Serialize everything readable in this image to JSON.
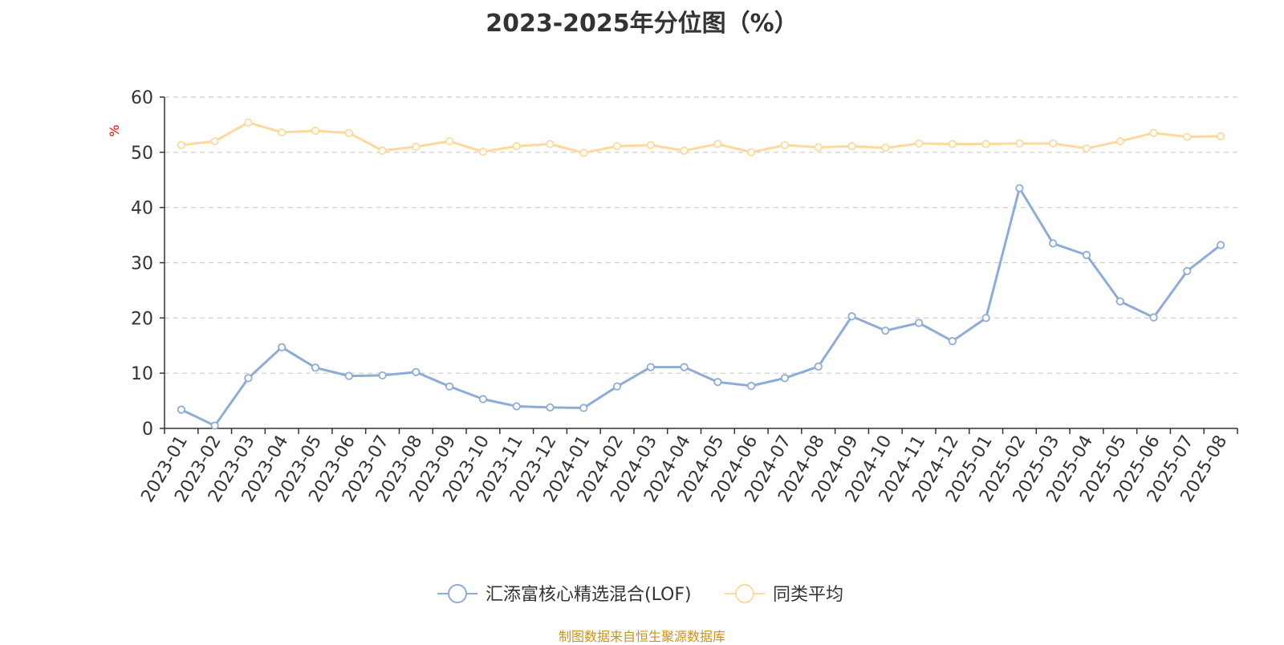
{
  "page": {
    "title": "2023-2025年分位图（%）",
    "source": "制图数据来自恒生聚源数据库"
  },
  "chart_data": {
    "type": "line",
    "title": "2023-2025年分位图（%）",
    "xlabel": "",
    "ylabel": "%",
    "ylim": [
      0,
      60
    ],
    "yticks": [
      0,
      10,
      20,
      30,
      40,
      50,
      60
    ],
    "grid": true,
    "legend_position": "bottom",
    "categories": [
      "2023-01",
      "2023-02",
      "2023-03",
      "2023-04",
      "2023-05",
      "2023-06",
      "2023-07",
      "2023-08",
      "2023-09",
      "2023-10",
      "2023-11",
      "2023-12",
      "2024-01",
      "2024-02",
      "2024-03",
      "2024-04",
      "2024-05",
      "2024-06",
      "2024-07",
      "2024-08",
      "2024-09",
      "2024-10",
      "2024-11",
      "2024-12",
      "2025-01",
      "2025-02",
      "2025-03",
      "2025-04",
      "2025-05",
      "2025-06",
      "2025-07",
      "2025-08"
    ],
    "series": [
      {
        "name": "汇添富核心精选混合(LOF)",
        "color": "#8eacd8",
        "values": [
          3.4,
          0.5,
          9.1,
          14.7,
          11.0,
          9.5,
          9.6,
          10.2,
          7.6,
          5.3,
          4.0,
          3.8,
          3.7,
          7.6,
          11.1,
          11.1,
          8.4,
          7.7,
          9.1,
          11.2,
          20.3,
          17.7,
          19.1,
          15.8,
          20.0,
          43.5,
          33.5,
          31.4,
          23.0,
          20.1,
          28.5,
          33.2
        ]
      },
      {
        "name": "同类平均",
        "color": "#fdd99b",
        "values": [
          51.3,
          52.0,
          55.4,
          53.6,
          53.9,
          53.5,
          50.3,
          51.0,
          52.0,
          50.1,
          51.1,
          51.5,
          49.9,
          51.1,
          51.3,
          50.3,
          51.5,
          50.0,
          51.3,
          50.9,
          51.1,
          50.8,
          51.6,
          51.5,
          51.5,
          51.6,
          51.6,
          50.7,
          52.0,
          53.5,
          52.8,
          52.9
        ]
      }
    ]
  }
}
